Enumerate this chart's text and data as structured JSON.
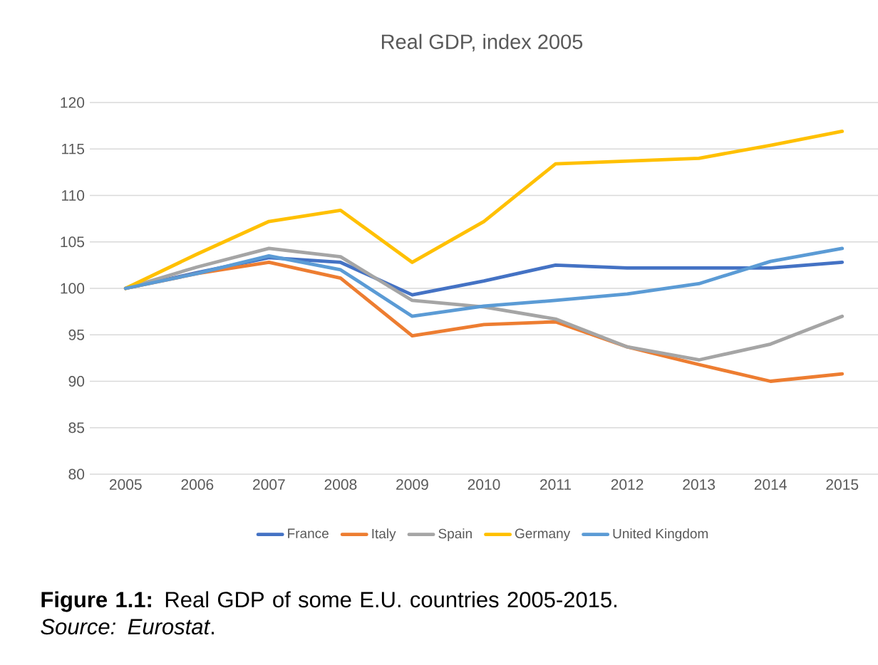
{
  "chart_data": {
    "type": "line",
    "title": "Real GDP, index 2005",
    "categories": [
      "2005",
      "2006",
      "2007",
      "2008",
      "2009",
      "2010",
      "2011",
      "2012",
      "2013",
      "2014",
      "2015"
    ],
    "series": [
      {
        "name": "France",
        "color": "#4472c4",
        "values": [
          100,
          101.7,
          103.3,
          102.8,
          99.3,
          100.8,
          102.5,
          102.2,
          102.2,
          102.2,
          102.8
        ]
      },
      {
        "name": "Italy",
        "color": "#ed7d31",
        "values": [
          100,
          101.6,
          102.8,
          101.1,
          94.9,
          96.1,
          96.4,
          93.7,
          91.8,
          90.0,
          90.8
        ]
      },
      {
        "name": "Spain",
        "color": "#a5a5a5",
        "values": [
          100,
          102.3,
          104.3,
          103.4,
          98.7,
          98.0,
          96.7,
          93.7,
          92.3,
          94.0,
          97.0
        ]
      },
      {
        "name": "Germany",
        "color": "#ffc000",
        "values": [
          100,
          103.7,
          107.2,
          108.4,
          102.8,
          107.2,
          113.4,
          113.7,
          114.0,
          115.4,
          116.9
        ]
      },
      {
        "name": "United Kingdom",
        "color": "#5b9bd5",
        "values": [
          100,
          101.6,
          103.5,
          102.0,
          97.0,
          98.1,
          98.7,
          99.4,
          100.5,
          102.9,
          104.3
        ]
      }
    ],
    "ylim": [
      80,
      120
    ],
    "yticks": [
      80,
      85,
      90,
      95,
      100,
      105,
      110,
      115,
      120
    ],
    "grid": "y",
    "legend": "bottom",
    "marker": "none",
    "line_style": "solid",
    "annotations": [
      "**Figure 1.1:** Real GDP of some E.U. countries 2005-2015. *Source: Eurostat*."
    ]
  }
}
